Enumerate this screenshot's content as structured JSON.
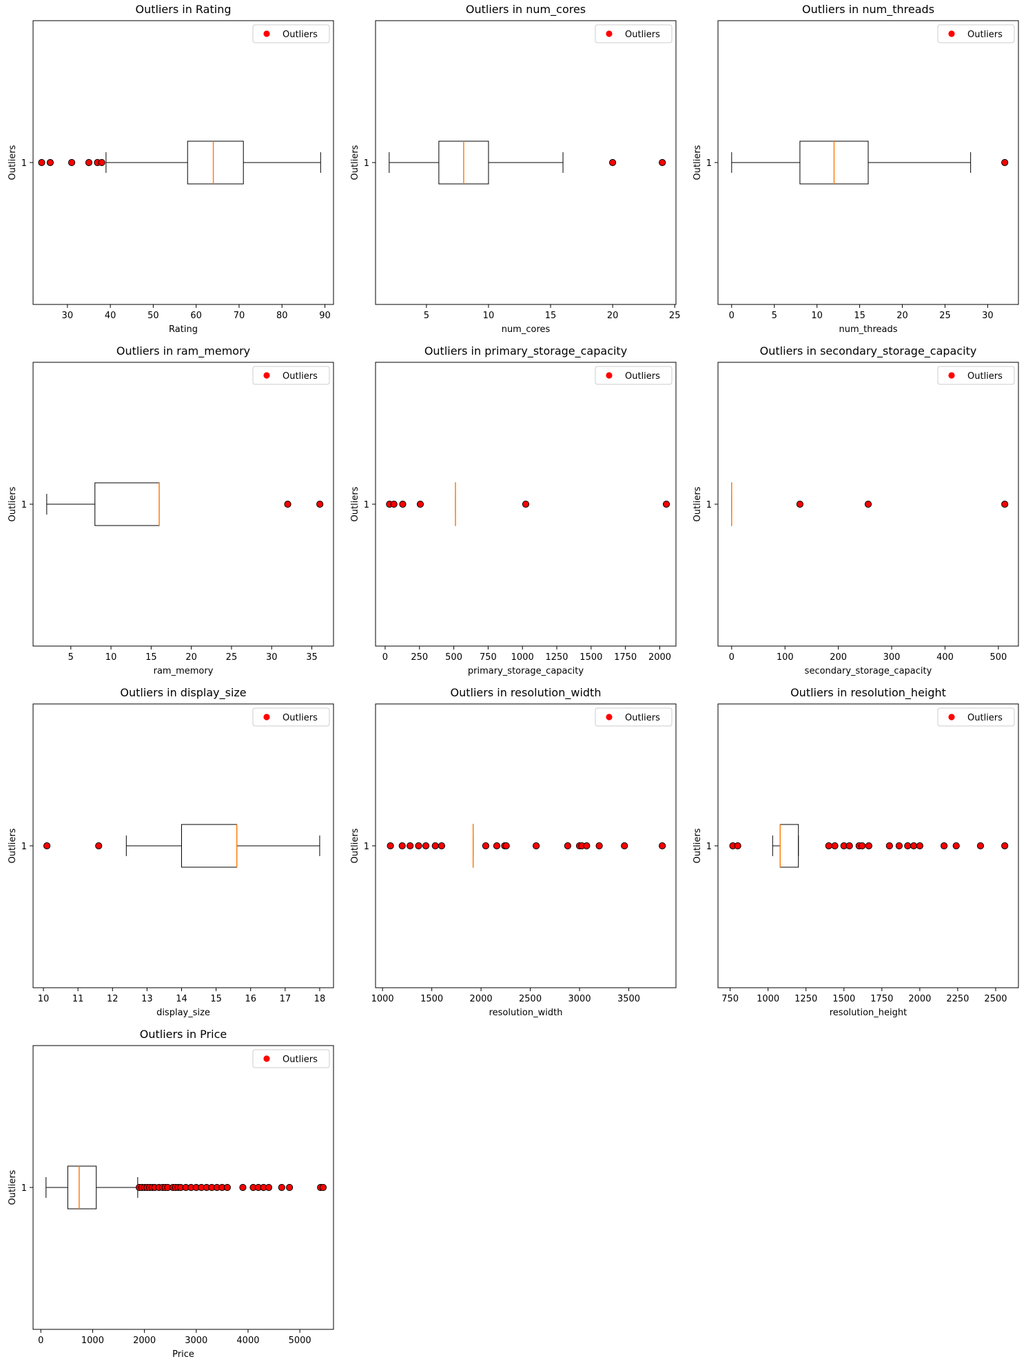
{
  "colors": {
    "outlier": "#ff0000",
    "median": "#ff7f0e",
    "box": "#000000"
  },
  "chart_data": [
    {
      "type": "boxplot",
      "title": "Outliers in Rating",
      "xlabel": "Rating",
      "ylabel": "Outliers",
      "ytick": "1",
      "xlim": [
        22,
        92
      ],
      "xticks": [
        30,
        40,
        50,
        60,
        70,
        80,
        90
      ],
      "box": {
        "whisker_low": 39,
        "q1": 58,
        "median": 64,
        "q3": 71,
        "whisker_high": 89
      },
      "outliers": [
        24,
        26,
        31,
        35,
        37,
        38
      ],
      "legend": "Outliers",
      "legend_position": "top-right"
    },
    {
      "type": "boxplot",
      "title": "Outliers in num_cores",
      "xlabel": "num_cores",
      "ylabel": "Outliers",
      "ytick": "1",
      "xlim": [
        0.9,
        25.1
      ],
      "xticks": [
        5,
        10,
        15,
        20,
        25
      ],
      "box": {
        "whisker_low": 2,
        "q1": 6,
        "median": 8,
        "q3": 10,
        "whisker_high": 16
      },
      "outliers": [
        20,
        24
      ],
      "legend": "Outliers",
      "legend_position": "top-right"
    },
    {
      "type": "boxplot",
      "title": "Outliers in num_threads",
      "xlabel": "num_threads",
      "ylabel": "Outliers",
      "ytick": "1",
      "xlim": [
        -1.6,
        33.6
      ],
      "xticks": [
        0,
        5,
        10,
        15,
        20,
        25,
        30
      ],
      "box": {
        "whisker_low": 0,
        "q1": 8,
        "median": 12,
        "q3": 16,
        "whisker_high": 28
      },
      "outliers": [
        32
      ],
      "legend": "Outliers",
      "legend_position": "top-right"
    },
    {
      "type": "boxplot",
      "title": "Outliers in ram_memory",
      "xlabel": "ram_memory",
      "ylabel": "Outliers",
      "ytick": "1",
      "xlim": [
        0.3,
        37.7
      ],
      "xticks": [
        5,
        10,
        15,
        20,
        25,
        30,
        35
      ],
      "box": {
        "whisker_low": 2,
        "q1": 8,
        "median": 16,
        "q3": 16,
        "whisker_high": 16
      },
      "outliers": [
        32,
        36
      ],
      "legend": "Outliers",
      "legend_position": "top-right"
    },
    {
      "type": "boxplot",
      "title": "Outliers in primary_storage_capacity",
      "xlabel": "primary_storage_capacity",
      "ylabel": "Outliers",
      "ytick": "1",
      "xlim": [
        -70,
        2118
      ],
      "xticks": [
        0,
        250,
        500,
        750,
        1000,
        1250,
        1500,
        1750,
        2000
      ],
      "xtick_labels": [
        "0",
        "250",
        "500",
        "750",
        "1000",
        "1250",
        "1500",
        "1750",
        "2000"
      ],
      "box": {
        "whisker_low": 512,
        "q1": 512,
        "median": 512,
        "q3": 512,
        "whisker_high": 512
      },
      "outliers": [
        32,
        64,
        128,
        256,
        1024,
        2048
      ],
      "legend": "Outliers",
      "legend_position": "top-right"
    },
    {
      "type": "boxplot",
      "title": "Outliers in secondary_storage_capacity",
      "xlabel": "secondary_storage_capacity",
      "ylabel": "Outliers",
      "ytick": "1",
      "xlim": [
        -25.6,
        537.6
      ],
      "xticks": [
        0,
        100,
        200,
        300,
        400,
        500
      ],
      "box": {
        "whisker_low": 0,
        "q1": 0,
        "median": 0,
        "q3": 0,
        "whisker_high": 0
      },
      "outliers": [
        128,
        256,
        512
      ],
      "legend": "Outliers",
      "legend_position": "top-right"
    },
    {
      "type": "boxplot",
      "title": "Outliers in display_size",
      "xlabel": "display_size",
      "ylabel": "Outliers",
      "ytick": "1",
      "xlim": [
        9.7,
        18.4
      ],
      "xticks": [
        10,
        11,
        12,
        13,
        14,
        15,
        16,
        17,
        18
      ],
      "box": {
        "whisker_low": 12.4,
        "q1": 14,
        "median": 15.6,
        "q3": 15.6,
        "whisker_high": 18
      },
      "outliers": [
        10.1,
        11.6
      ],
      "legend": "Outliers",
      "legend_position": "top-right"
    },
    {
      "type": "boxplot",
      "title": "Outliers in resolution_width",
      "xlabel": "resolution_width",
      "ylabel": "Outliers",
      "ytick": "1",
      "xlim": [
        929,
        3979
      ],
      "xticks": [
        1000,
        1500,
        2000,
        2500,
        3000,
        3500
      ],
      "box": {
        "whisker_low": 1920,
        "q1": 1920,
        "median": 1920,
        "q3": 1920,
        "whisker_high": 1920
      },
      "outliers": [
        1080,
        1200,
        1280,
        1366,
        1440,
        1536,
        1600,
        2048,
        2160,
        2240,
        2256,
        2560,
        2880,
        3000,
        3024,
        3072,
        3200,
        3456,
        3840
      ],
      "legend": "Outliers",
      "legend_position": "top-right"
    },
    {
      "type": "boxplot",
      "title": "Outliers in resolution_height",
      "xlabel": "resolution_height",
      "ylabel": "Outliers",
      "ytick": "1",
      "xlim": [
        670,
        2650
      ],
      "xticks": [
        750,
        1000,
        1250,
        1500,
        1750,
        2000,
        2250,
        2500
      ],
      "box": {
        "whisker_low": 1030,
        "q1": 1080,
        "median": 1080,
        "q3": 1200,
        "whisker_high": 1200
      },
      "outliers": [
        768,
        800,
        1400,
        1440,
        1500,
        1536,
        1600,
        1620,
        1664,
        1800,
        1864,
        1920,
        1960,
        2000,
        2160,
        2240,
        2400,
        2560
      ],
      "legend": "Outliers",
      "legend_position": "top-right"
    },
    {
      "type": "boxplot",
      "title": "Outliers in Price",
      "xlabel": "Price",
      "ylabel": "Outliers",
      "ytick": "1",
      "xlim": [
        -150,
        5650
      ],
      "xticks": [
        0,
        1000,
        2000,
        3000,
        4000,
        5000
      ],
      "box": {
        "whisker_low": 100,
        "q1": 520,
        "median": 740,
        "q3": 1070,
        "whisker_high": 1870
      },
      "outliers": [
        1900,
        1950,
        2000,
        2050,
        2100,
        2150,
        2200,
        2280,
        2350,
        2400,
        2450,
        2550,
        2600,
        2650,
        2700,
        2800,
        2900,
        3000,
        3100,
        3200,
        3300,
        3400,
        3500,
        3600,
        3900,
        4100,
        4200,
        4300,
        4400,
        4650,
        4800,
        5400,
        5450
      ],
      "legend": "Outliers",
      "legend_position": "top-right"
    }
  ]
}
